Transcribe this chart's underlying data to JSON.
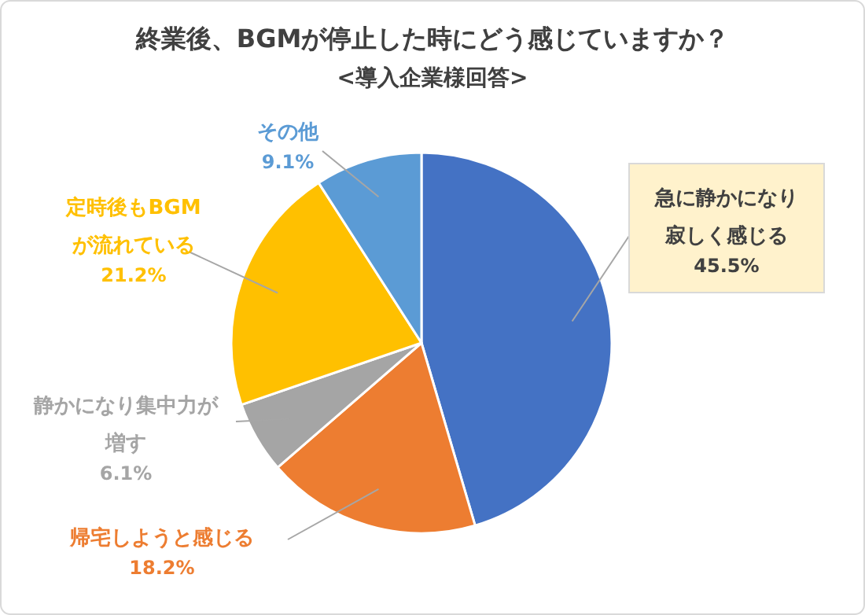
{
  "chart_data": {
    "type": "pie",
    "title": "終業後、BGMが停止した時にどう感じていますか？",
    "subtitle": "<導入企業様回答>",
    "categories": [
      "急に静かになり寂しく感じる",
      "帰宅しようと感じる",
      "静かになり集中力が増す",
      "定時後もBGMが流れている",
      "その他"
    ],
    "values": [
      45.5,
      18.2,
      6.1,
      21.2,
      9.1
    ],
    "colors": [
      "#4472c4",
      "#ed7d31",
      "#a5a5a5",
      "#ffc000",
      "#5b9bd5"
    ],
    "value_labels": [
      "45.5%",
      "18.2%",
      "6.1%",
      "21.2%",
      "9.1%"
    ]
  }
}
